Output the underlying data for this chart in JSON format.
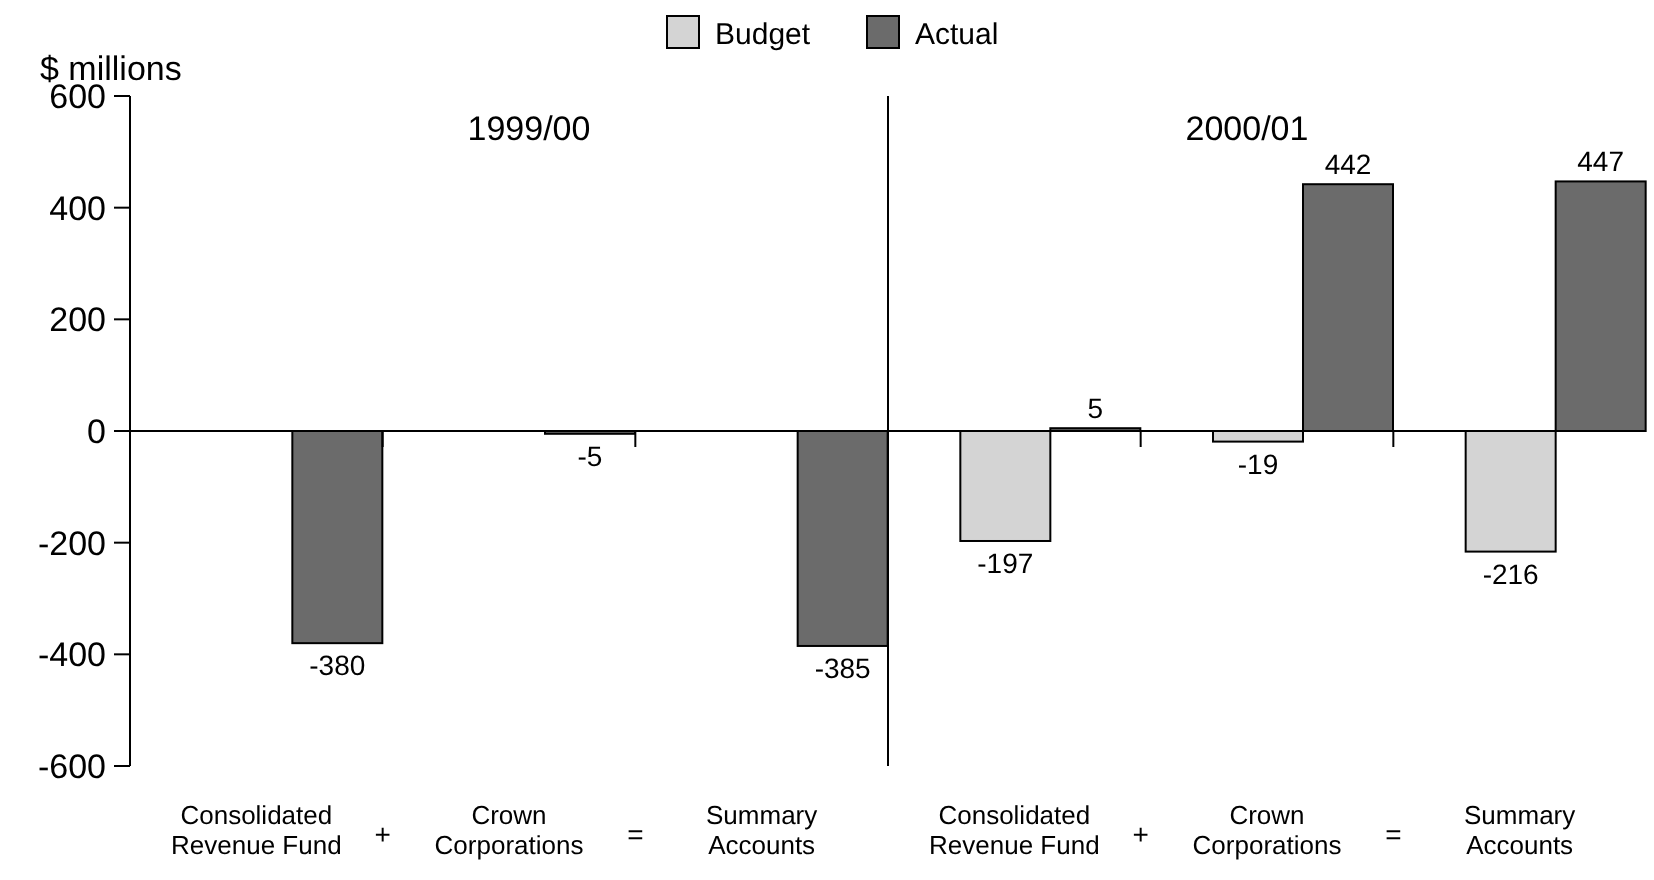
{
  "chart_data": {
    "type": "bar",
    "ylabel": "$ millions",
    "categories": [
      "Consolidated\nRevenue Fund",
      "Crown\nCorporations",
      "Summary\nAccounts",
      "Consolidated\nRevenue Fund",
      "Crown\nCorporations",
      "Summary\nAccounts"
    ],
    "series": [
      {
        "name": "Budget",
        "color": "#d4d4d4",
        "values": [
          null,
          null,
          null,
          -197,
          -19,
          -216
        ],
        "value_labels": [
          null,
          null,
          null,
          "-197",
          "-19",
          "-216"
        ]
      },
      {
        "name": "Actual",
        "color": "#6b6b6b",
        "values": [
          -380,
          -5,
          -385,
          5,
          442,
          447
        ],
        "value_labels": [
          "-380",
          "-5",
          "-385",
          "5",
          "442",
          "447"
        ]
      }
    ],
    "ylim": [
      -600,
      600
    ],
    "yticks": [
      -600,
      -400,
      -200,
      0,
      200,
      400,
      600
    ],
    "legend": "top",
    "annotations": [
      "1999/00",
      "2000/01",
      "+",
      "=",
      "+",
      "="
    ]
  }
}
